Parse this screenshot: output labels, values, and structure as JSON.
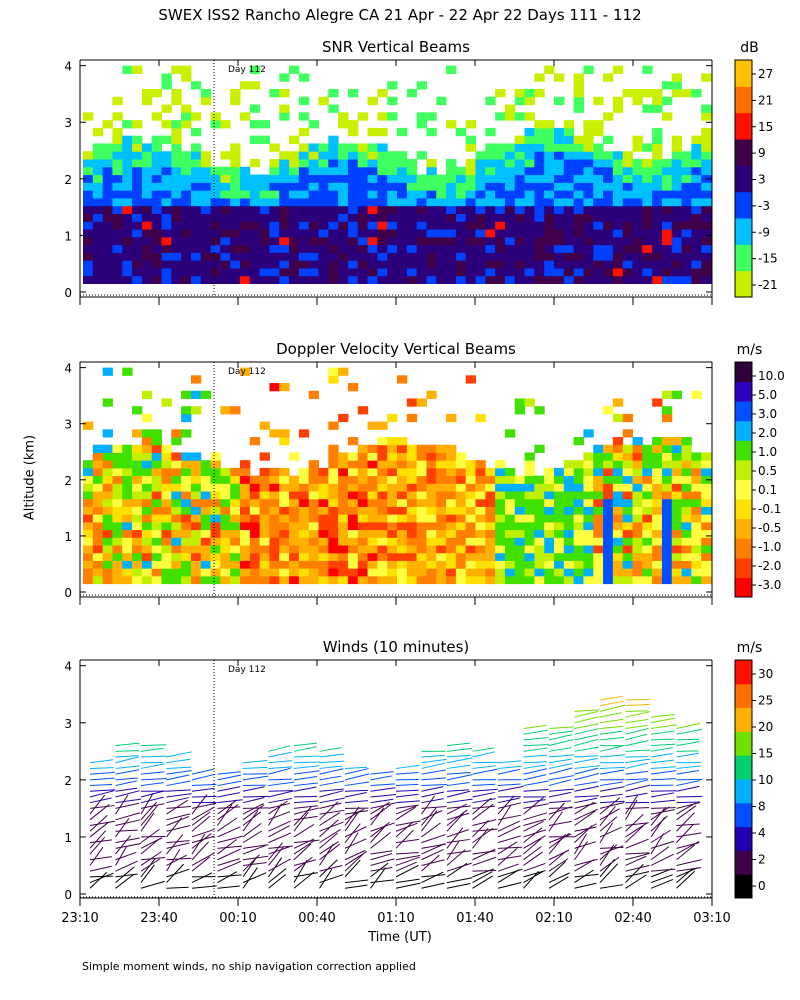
{
  "page": {
    "title": "SWEX ISS2 Rancho Alegre CA  21 Apr - 22 Apr 22 Days 111 - 112",
    "xlabel": "Time (UT)",
    "ylabel": "Altitude (km)",
    "footnote": "Simple moment winds, no ship navigation correction applied",
    "day_marker_label": "Day 112"
  },
  "chart_data": [
    {
      "type": "heatmap",
      "title": "SNR Vertical Beams",
      "unit": "dB",
      "xlabel": "Time (UT)",
      "ylabel": "Altitude (km)",
      "ylim": [
        0,
        4
      ],
      "yticks": [
        "0",
        "1",
        "2",
        "3",
        "4"
      ],
      "xticks": [],
      "colorbar_ticks": [
        "27",
        "21",
        "15",
        "9",
        "3",
        "-3",
        "-9",
        "-15",
        "-21"
      ],
      "colorbar_colors": [
        "#c8f000",
        "#40ff60",
        "#00c0ff",
        "#0040ff",
        "#2b007a",
        "#40004a",
        "#ff1000",
        "#ff7000",
        "#ffc000"
      ],
      "day_marker": "Day 112",
      "description_rows": [
        {
          "altitude_km": "0.2-1.5",
          "typical_db": "3 to 9"
        },
        {
          "altitude_km": "1.5-2.3",
          "typical_db": "-9 to -3"
        },
        {
          "altitude_km": "2.3-4.0",
          "typical_db": "-21 to -15"
        }
      ]
    },
    {
      "type": "heatmap",
      "title": "Doppler Velocity Vertical Beams",
      "unit": "m/s",
      "xlabel": "Time (UT)",
      "ylabel": "Altitude (km)",
      "ylim": [
        0,
        4
      ],
      "yticks": [
        "0",
        "1",
        "2",
        "3",
        "4"
      ],
      "xticks": [],
      "colorbar_ticks": [
        "10.0",
        "5.0",
        "3.0",
        "2.0",
        "1.0",
        "0.5",
        "0.1",
        "-0.1",
        "-0.5",
        "-1.0",
        "-2.0",
        "-3.0"
      ],
      "colorbar_colors": [
        "#ff0000",
        "#ff4000",
        "#ff8000",
        "#ffb000",
        "#ffe000",
        "#ffff40",
        "#c0f000",
        "#40e000",
        "#00b0ff",
        "#0050ff",
        "#3000c0",
        "#30003a"
      ],
      "day_marker": "Day 112"
    },
    {
      "type": "scatter",
      "title": "Winds (10 minutes)",
      "unit": "m/s",
      "xlabel": "Time (UT)",
      "ylabel": "Altitude (km)",
      "ylim": [
        0,
        4
      ],
      "yticks": [
        "0",
        "1",
        "2",
        "3",
        "4"
      ],
      "xticks": [
        "23:10",
        "23:40",
        "00:10",
        "00:40",
        "01:10",
        "01:40",
        "02:10",
        "02:40",
        "03:10"
      ],
      "colorbar_ticks": [
        "30",
        "25",
        "20",
        "15",
        "10",
        "8",
        "4",
        "2",
        "0"
      ],
      "colorbar_colors": [
        "#000000",
        "#40004a",
        "#2000b0",
        "#0050ff",
        "#00b0ff",
        "#00d070",
        "#70e000",
        "#ffb000",
        "#ff7000",
        "#ff1000"
      ],
      "day_marker": "Day 112"
    }
  ]
}
